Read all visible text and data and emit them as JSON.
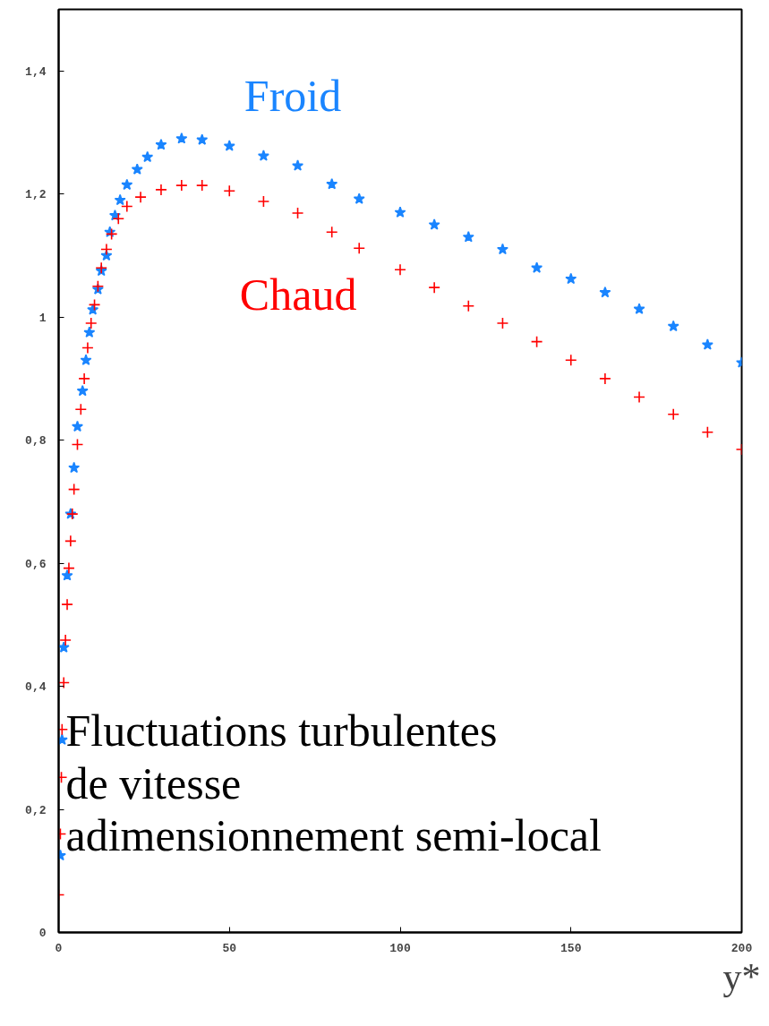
{
  "chart_data": {
    "type": "scatter",
    "xlabel": "y*",
    "xlim": [
      0,
      200
    ],
    "xticks": [
      0,
      50,
      100,
      150,
      200
    ],
    "ylim": [
      0,
      1.5
    ],
    "yticks": [
      {
        "value": 0,
        "label": "0"
      },
      {
        "value": 0.2,
        "label": "0,2"
      },
      {
        "value": 0.4,
        "label": "0,4"
      },
      {
        "value": 0.6,
        "label": "0,6"
      },
      {
        "value": 0.8,
        "label": "0,8"
      },
      {
        "value": 1,
        "label": "1"
      },
      {
        "value": 1.2,
        "label": "1,2"
      },
      {
        "value": 1.4,
        "label": "1,4"
      }
    ],
    "grid": false,
    "legend": false,
    "annotations": [
      "Fluctuations turbulentes\nde vitesse\nadimensionnement semi-local"
    ],
    "series": [
      {
        "name": "Froid",
        "color": "#1a85ff",
        "marker": "star",
        "x": [
          0.5,
          1,
          1.5,
          2.5,
          3.5,
          4.5,
          5.5,
          7,
          8,
          9,
          10,
          11.5,
          12.5,
          14,
          15,
          16.5,
          18,
          20,
          23,
          26,
          30,
          36,
          42,
          50,
          60,
          70,
          80,
          88,
          100,
          110,
          120,
          130,
          140,
          150,
          160,
          170,
          180,
          190,
          200
        ],
        "values": [
          0.125,
          0.313,
          0.463,
          0.58,
          0.68,
          0.755,
          0.822,
          0.88,
          0.93,
          0.975,
          1.012,
          1.045,
          1.075,
          1.1,
          1.138,
          1.165,
          1.19,
          1.215,
          1.24,
          1.26,
          1.28,
          1.29,
          1.288,
          1.278,
          1.262,
          1.246,
          1.216,
          1.192,
          1.17,
          1.15,
          1.13,
          1.11,
          1.08,
          1.062,
          1.04,
          1.013,
          0.985,
          0.955,
          0.926
        ]
      },
      {
        "name": "Chaud",
        "color": "#ff0000",
        "marker": "cross",
        "x": [
          0,
          0.5,
          0.8,
          1,
          1.5,
          2,
          2.5,
          3,
          3.5,
          4,
          4.5,
          5.5,
          6.5,
          7.5,
          8.5,
          9.5,
          10.5,
          11.5,
          12.5,
          14,
          15.5,
          17.5,
          20,
          24,
          30,
          36,
          42,
          50,
          60,
          70,
          80,
          88,
          100,
          110,
          120,
          130,
          140,
          150,
          160,
          170,
          180,
          190,
          200
        ],
        "values": [
          0.061,
          0.16,
          0.252,
          0.33,
          0.406,
          0.475,
          0.533,
          0.592,
          0.636,
          0.68,
          0.72,
          0.793,
          0.85,
          0.9,
          0.95,
          0.99,
          1.02,
          1.05,
          1.08,
          1.11,
          1.135,
          1.16,
          1.18,
          1.195,
          1.207,
          1.214,
          1.214,
          1.205,
          1.188,
          1.169,
          1.138,
          1.112,
          1.077,
          1.048,
          1.018,
          0.99,
          0.96,
          0.93,
          0.9,
          0.87,
          0.842,
          0.813,
          0.785
        ]
      }
    ]
  }
}
